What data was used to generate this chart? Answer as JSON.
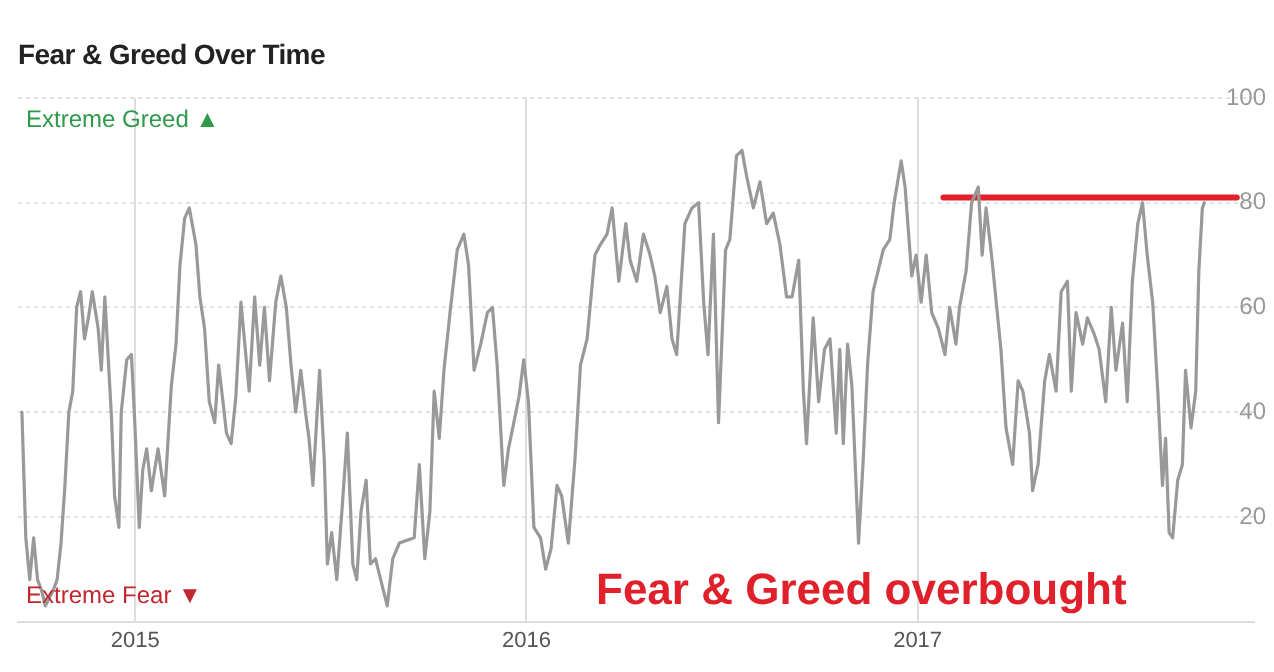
{
  "chart_data": {
    "type": "line",
    "title": "Fear & Greed Over Time",
    "annotations": [
      "Extreme Greed ▲",
      "Extreme Fear ▼",
      "Fear & Greed overbought"
    ],
    "xlim": [
      2014.7,
      2017.86
    ],
    "xticks": [
      2015,
      2016,
      2017
    ],
    "ylim": [
      0,
      100
    ],
    "yticks": [
      20,
      40,
      60,
      80,
      100
    ],
    "grid": true,
    "legend": false,
    "marker": "none",
    "line_style": "solid",
    "series": [
      {
        "color": "#999999",
        "x": [
          2014.71,
          2014.72,
          2014.73,
          2014.74,
          2014.75,
          2014.76,
          2014.77,
          2014.79,
          2014.8,
          2014.81,
          2014.82,
          2014.83,
          2014.84,
          2014.85,
          2014.86,
          2014.87,
          2014.88,
          2014.89,
          2014.905,
          2014.913,
          2014.922,
          2014.939,
          2014.947,
          2014.958,
          2014.964,
          2014.978,
          2014.99,
          2014.998,
          2015.01,
          2015.019,
          2015.029,
          2015.041,
          2015.058,
          2015.075,
          2015.092,
          2015.104,
          2015.114,
          2015.126,
          2015.138,
          2015.155,
          2015.165,
          2015.177,
          2015.189,
          2015.203,
          2015.213,
          2015.224,
          2015.233,
          2015.245,
          2015.257,
          2015.27,
          2015.291,
          2015.305,
          2015.318,
          2015.33,
          2015.343,
          2015.359,
          2015.372,
          2015.386,
          2015.398,
          2015.41,
          2015.423,
          2015.435,
          2015.444,
          2015.454,
          2015.471,
          2015.483,
          2015.491,
          2015.502,
          2015.515,
          2015.529,
          2015.542,
          2015.556,
          2015.566,
          2015.577,
          2015.59,
          2015.601,
          2015.614,
          2015.644,
          2015.658,
          2015.675,
          2015.713,
          2015.726,
          2015.74,
          2015.753,
          2015.764,
          2015.777,
          2015.789,
          2015.806,
          2015.823,
          2015.84,
          2015.852,
          2015.866,
          2015.883,
          2015.9,
          2015.913,
          2015.925,
          2015.942,
          2015.954,
          2015.981,
          2015.993,
          2016.005,
          2016.019,
          2016.036,
          2016.049,
          2016.063,
          2016.078,
          2016.09,
          2016.107,
          2016.124,
          2016.138,
          2016.155,
          2016.175,
          2016.189,
          2016.206,
          2016.219,
          2016.236,
          2016.254,
          2016.265,
          2016.282,
          2016.299,
          2016.316,
          2016.328,
          2016.342,
          2016.359,
          2016.372,
          2016.384,
          2016.405,
          2016.423,
          2016.44,
          2016.453,
          2016.464,
          2016.478,
          2016.491,
          2016.509,
          2016.52,
          2016.537,
          2016.551,
          2016.563,
          2016.58,
          2016.597,
          2016.614,
          2016.631,
          2016.648,
          2016.665,
          2016.679,
          2016.696,
          2016.708,
          2016.716,
          2016.733,
          2016.747,
          2016.762,
          2016.776,
          2016.792,
          2016.801,
          2016.81,
          2016.821,
          2016.832,
          2016.849,
          2016.861,
          2016.872,
          2016.886,
          2016.899,
          2016.912,
          2016.929,
          2016.94,
          2016.958,
          2016.968,
          2016.985,
          2016.996,
          2017.009,
          2017.022,
          2017.036,
          2017.053,
          2017.07,
          2017.082,
          2017.098,
          2017.107,
          2017.124,
          2017.138,
          2017.155,
          2017.165,
          2017.175,
          2017.189,
          2017.201,
          2017.213,
          2017.226,
          2017.243,
          2017.257,
          2017.269,
          2017.286,
          2017.294,
          2017.308,
          2017.325,
          2017.337,
          2017.354,
          2017.367,
          2017.383,
          2017.393,
          2017.405,
          2017.422,
          2017.434,
          2017.451,
          2017.464,
          2017.481,
          2017.495,
          2017.507,
          2017.524,
          2017.536,
          2017.549,
          2017.563,
          2017.575,
          2017.587,
          2017.601,
          2017.614,
          2017.626,
          2017.634,
          2017.643,
          2017.652,
          2017.665,
          2017.677,
          2017.685,
          2017.699,
          2017.711,
          2017.719,
          2017.728,
          2017.733
        ],
        "values": [
          40,
          16,
          8,
          16,
          8,
          6,
          3,
          6,
          8,
          15,
          26,
          40,
          44,
          60,
          63,
          54,
          58,
          63,
          56,
          48,
          62,
          39,
          24,
          18,
          40,
          50,
          51,
          39,
          18,
          29,
          33,
          25,
          33,
          24,
          45,
          53,
          68,
          77,
          79,
          72,
          62,
          56,
          42,
          38,
          49,
          42,
          36,
          34,
          43,
          61,
          44,
          62,
          49,
          60,
          46,
          61,
          66,
          60,
          49,
          40,
          48,
          40,
          35,
          26,
          48,
          31,
          11,
          17,
          8,
          22,
          36,
          11,
          8,
          21,
          27,
          11,
          12,
          3,
          12,
          15,
          16,
          30,
          12,
          21,
          44,
          35,
          48,
          60,
          71,
          74,
          68,
          48,
          53,
          59,
          60,
          49,
          26,
          33,
          43,
          50,
          42,
          18,
          16,
          10,
          14,
          26,
          24,
          15,
          31,
          49,
          54,
          70,
          72,
          74,
          79,
          65,
          76,
          69,
          65,
          74,
          70,
          66,
          59,
          64,
          54,
          51,
          76,
          79,
          80,
          61,
          51,
          74,
          38,
          71,
          73,
          89,
          90,
          85,
          79,
          84,
          76,
          78,
          72,
          62,
          62,
          69,
          44,
          34,
          58,
          42,
          52,
          54,
          36,
          52,
          34,
          53,
          45,
          15,
          31,
          49,
          63,
          67,
          71,
          73,
          80,
          88,
          83,
          66,
          70,
          61,
          70,
          59,
          56,
          51,
          60,
          53,
          60,
          67,
          80,
          83,
          70,
          79,
          70,
          61,
          52,
          37,
          30,
          46,
          44,
          36,
          25,
          30,
          46,
          51,
          44,
          63,
          65,
          44,
          59,
          53,
          58,
          55,
          52,
          42,
          60,
          48,
          57,
          42,
          65,
          76,
          80,
          70,
          61,
          44,
          26,
          35,
          17,
          16,
          27,
          30,
          48,
          37,
          44,
          67,
          79,
          80
        ]
      },
      {
        "color": "#e0202a",
        "x": [
          2017.066,
          2017.816
        ],
        "values": [
          81,
          81
        ]
      }
    ]
  }
}
